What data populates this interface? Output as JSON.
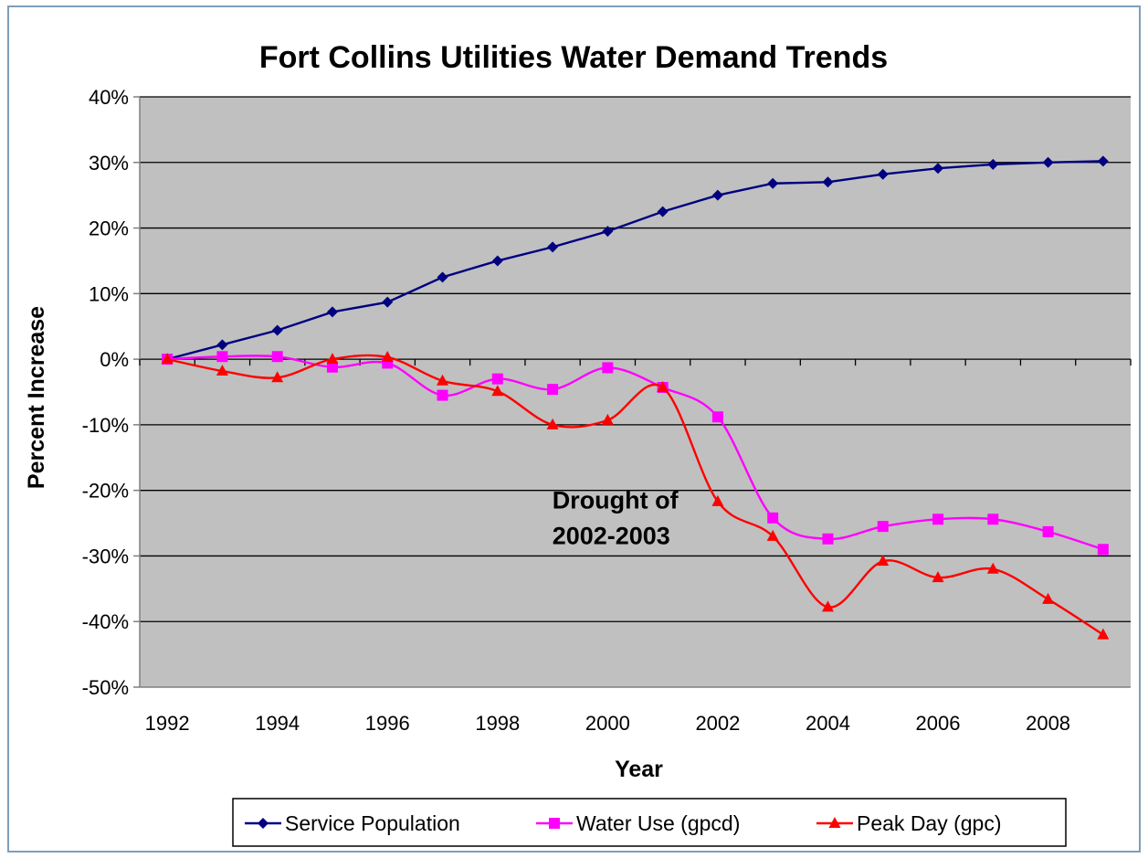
{
  "chart_data": {
    "type": "line",
    "title": "Fort Collins Utilities Water Demand Trends",
    "xlabel": "Year",
    "ylabel": "Percent Increase",
    "x": [
      1992,
      1993,
      1994,
      1995,
      1996,
      1997,
      1998,
      1999,
      2000,
      2001,
      2002,
      2003,
      2004,
      2005,
      2006,
      2007,
      2008,
      2009
    ],
    "xlim": [
      1991.5,
      2009.5
    ],
    "xticks": [
      1992,
      1994,
      1996,
      1998,
      2000,
      2002,
      2004,
      2006,
      2008
    ],
    "xtick_labels": [
      "1992",
      "1994",
      "1996",
      "1998",
      "2000",
      "2002",
      "2004",
      "2006",
      "2008"
    ],
    "ylim": [
      -50,
      40
    ],
    "yticks": [
      40,
      30,
      20,
      10,
      0,
      -10,
      -20,
      -30,
      -40,
      -50
    ],
    "ytick_labels": [
      "40%",
      "30%",
      "20%",
      "10%",
      "0%",
      "-10%",
      "-20%",
      "-30%",
      "-40%",
      "-50%"
    ],
    "grid": true,
    "plot_background": "#c0c0c0",
    "legend_position": "bottom",
    "series": [
      {
        "name": "Service Population",
        "color": "#000080",
        "marker": "diamond",
        "smooth": false,
        "values": [
          0,
          2.2,
          4.4,
          7.2,
          8.7,
          12.5,
          15.0,
          17.1,
          19.5,
          22.5,
          25.0,
          26.8,
          27.0,
          28.2,
          29.1,
          29.7,
          30.0,
          30.2
        ]
      },
      {
        "name": "Water Use (gpcd)",
        "color": "#ff00ff",
        "marker": "square",
        "smooth": true,
        "values": [
          0,
          0.4,
          0.4,
          -1.2,
          -0.6,
          -5.5,
          -3.0,
          -4.6,
          -1.3,
          -4.3,
          -8.8,
          -24.2,
          -27.4,
          -25.5,
          -24.4,
          -24.4,
          -26.3,
          -29.0
        ]
      },
      {
        "name": "Peak Day (gpc)",
        "color": "#ff0000",
        "marker": "triangle",
        "smooth": true,
        "values": [
          0,
          -1.8,
          -2.8,
          0,
          0.3,
          -3.3,
          -4.9,
          -10.0,
          -9.3,
          -4.3,
          -21.7,
          -27.0,
          -37.8,
          -30.8,
          -33.3,
          -32.0,
          -36.6,
          -42.0
        ]
      }
    ],
    "annotations": [
      {
        "line1": "Drought of",
        "line2": "2002-2003",
        "x": 2001.2,
        "y": -22.5
      }
    ]
  }
}
